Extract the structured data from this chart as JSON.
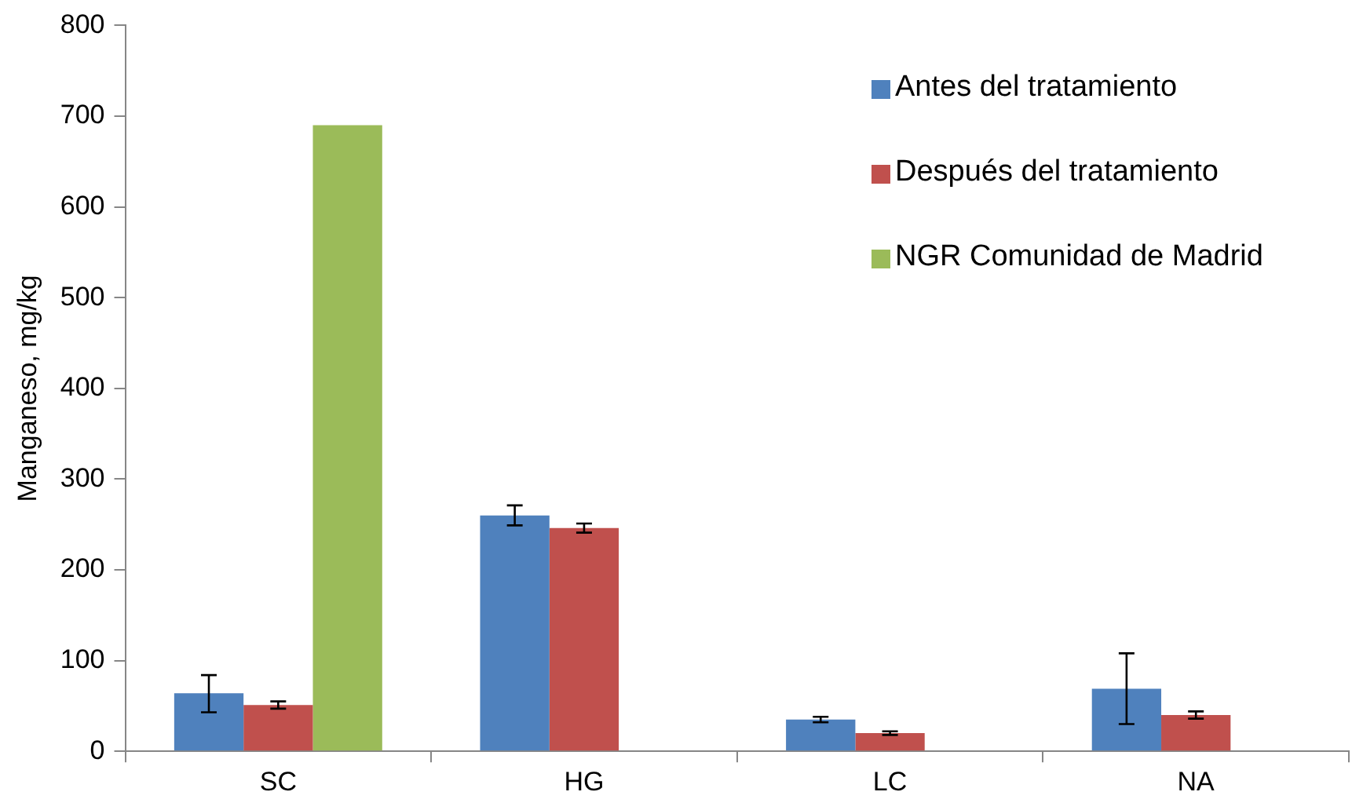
{
  "chart_data": {
    "type": "bar",
    "ylabel": "Manganeso, mg/kg",
    "categories": [
      "SC",
      "HG",
      "LC",
      "NA"
    ],
    "series": [
      {
        "name": "Antes del tratamiento",
        "color": "#4f81bd",
        "values": [
          64,
          260,
          35,
          69
        ],
        "errors": [
          [
            43,
            84
          ],
          [
            249,
            271
          ],
          [
            32,
            38
          ],
          [
            30,
            108
          ]
        ]
      },
      {
        "name": "Después del tratamiento",
        "color": "#c0504d",
        "values": [
          51,
          246,
          20,
          40
        ],
        "errors": [
          [
            47,
            55
          ],
          [
            241,
            251
          ],
          [
            18,
            22
          ],
          [
            36,
            44
          ]
        ]
      },
      {
        "name": "NGR Comunidad de Madrid",
        "color": "#9bbb59",
        "values": [
          690,
          null,
          null,
          null
        ]
      }
    ],
    "ylim": [
      0,
      800
    ],
    "yticks": [
      0,
      100,
      200,
      300,
      400,
      500,
      600,
      700,
      800
    ],
    "legend": "top right"
  }
}
